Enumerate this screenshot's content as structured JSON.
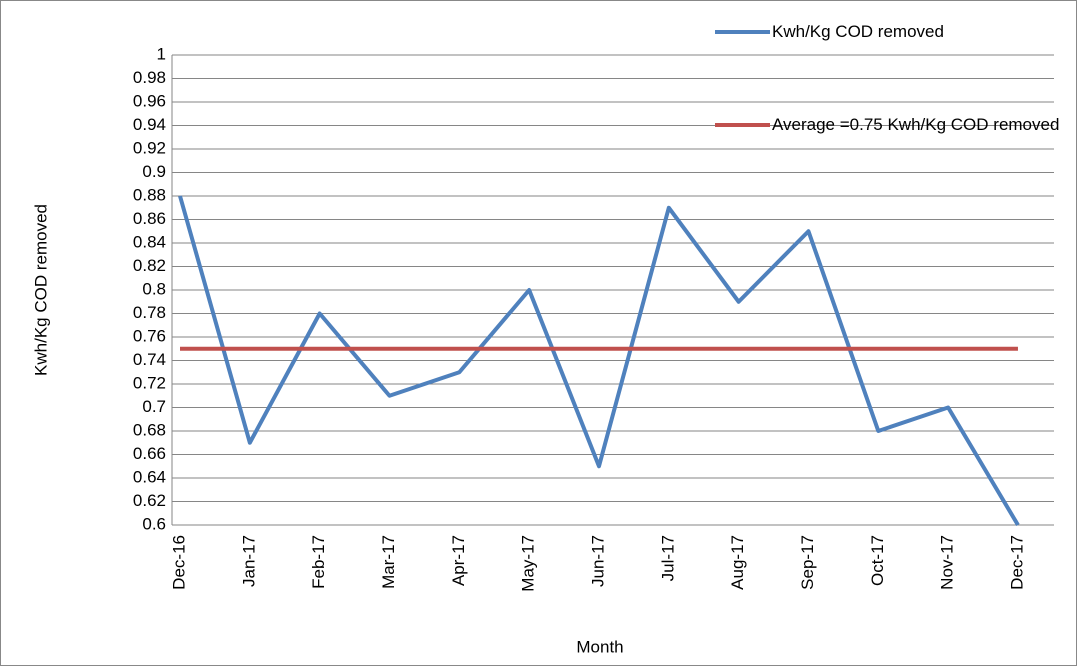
{
  "chart_data": {
    "type": "line",
    "x_label": "Month",
    "y_label": "Kwh/Kg COD removed",
    "categories": [
      "Dec-16",
      "Jan-17",
      "Feb-17",
      "Mar-17",
      "Apr-17",
      "May-17",
      "Jun-17",
      "Jul-17",
      "Aug-17",
      "Sep-17",
      "Oct-17",
      "Nov-17",
      "Dec-17"
    ],
    "series": [
      {
        "name": "Kwh/Kg COD removed",
        "color": "#4f81bd",
        "values": [
          0.88,
          0.67,
          0.78,
          0.71,
          0.73,
          0.8,
          0.65,
          0.87,
          0.79,
          0.85,
          0.68,
          0.7,
          0.6
        ]
      },
      {
        "name": "Average =0.75 Kwh/Kg COD removed",
        "color": "#c0504d",
        "values": [
          0.75,
          0.75,
          0.75,
          0.75,
          0.75,
          0.75,
          0.75,
          0.75,
          0.75,
          0.75,
          0.75,
          0.75,
          0.75
        ]
      }
    ],
    "ylim": [
      0.6,
      1
    ],
    "yticks": [
      0.6,
      0.62,
      0.64,
      0.66,
      0.68,
      0.7,
      0.72,
      0.74,
      0.76,
      0.78,
      0.8,
      0.82,
      0.84,
      0.86,
      0.88,
      0.9,
      0.92,
      0.94,
      0.96,
      0.98,
      1
    ],
    "grid": true,
    "legend": "top-right"
  }
}
